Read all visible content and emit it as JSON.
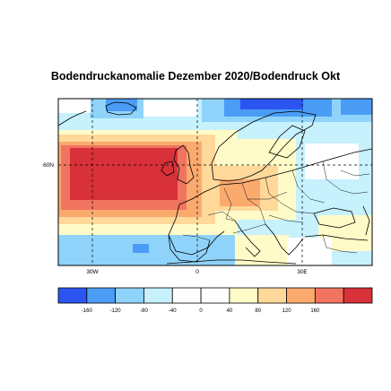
{
  "title": "Bodendruckanomalie Dezember 2020/Bodendruck Okt",
  "map": {
    "region": "Europe / North Atlantic",
    "lat_label": "60N",
    "lon_labels": [
      "30W",
      "0",
      "30E"
    ]
  },
  "colorbar": {
    "tick_labels": [
      "-160",
      "-120",
      "-80",
      "-40",
      "0",
      "40",
      "80",
      "120",
      "160"
    ],
    "colors": [
      "#2b55f0",
      "#4a9cf5",
      "#8fd3fb",
      "#c6f1fd",
      "#ffffff",
      "#ffffff",
      "#fffbc8",
      "#ffd89a",
      "#fbaa6e",
      "#f0745f",
      "#d8313a"
    ]
  },
  "palette": {
    "blue_strong": "#2b55f0",
    "blue_mid": "#4a9cf5",
    "blue_light": "#8fd3fb",
    "blue_pale": "#c6f1fd",
    "neutral": "#ffffff",
    "yellow_pale": "#fffbc8",
    "orange_light": "#ffd89a",
    "orange": "#fbaa6e",
    "red_light": "#f0745f",
    "red_strong": "#d8313a"
  }
}
